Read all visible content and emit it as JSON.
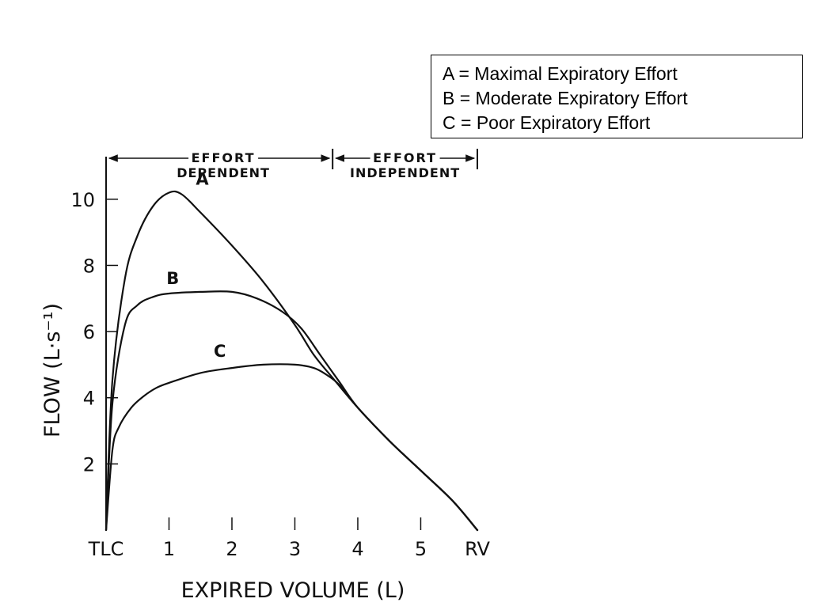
{
  "chart_data": {
    "type": "line",
    "xlabel": "EXPIRED VOLUME (L)",
    "ylabel": "FLOW (L·s⁻¹)",
    "xlim": [
      0,
      5.9
    ],
    "ylim": [
      0,
      11
    ],
    "x_ticks": [
      {
        "value": 0,
        "label": "TLC"
      },
      {
        "value": 1,
        "label": "1"
      },
      {
        "value": 2,
        "label": "2"
      },
      {
        "value": 3,
        "label": "3"
      },
      {
        "value": 4,
        "label": "4"
      },
      {
        "value": 5,
        "label": "5"
      },
      {
        "value": 5.9,
        "label": "RV"
      }
    ],
    "y_ticks": [
      {
        "value": 2,
        "label": "2"
      },
      {
        "value": 4,
        "label": "4"
      },
      {
        "value": 6,
        "label": "6"
      },
      {
        "value": 8,
        "label": "8"
      },
      {
        "value": 10,
        "label": "10"
      }
    ],
    "regions": [
      {
        "label_line1": "EFFORT",
        "label_line2": "DEPENDENT",
        "x_start": 0,
        "x_end": 3.6
      },
      {
        "label_line1": "EFFORT",
        "label_line2": "INDEPENDENT",
        "x_start": 3.6,
        "x_end": 5.9
      }
    ],
    "series": [
      {
        "name": "A",
        "x": [
          0,
          0.1,
          0.3,
          0.5,
          0.75,
          1.0,
          1.2,
          1.5,
          2.0,
          2.5,
          3.0,
          3.3,
          3.6,
          4.0,
          4.5,
          5.0,
          5.5,
          5.9
        ],
        "y": [
          0,
          4.5,
          7.6,
          8.9,
          9.8,
          10.2,
          10.15,
          9.6,
          8.6,
          7.5,
          6.2,
          5.3,
          4.6,
          3.7,
          2.7,
          1.8,
          0.9,
          0
        ]
      },
      {
        "name": "B",
        "x": [
          0,
          0.1,
          0.3,
          0.5,
          0.75,
          1.0,
          1.5,
          2.0,
          2.4,
          2.8,
          3.1,
          3.4,
          3.7,
          4.0,
          4.5,
          5.0,
          5.5,
          5.9
        ],
        "y": [
          0,
          3.8,
          6.2,
          6.8,
          7.05,
          7.15,
          7.2,
          7.2,
          7.0,
          6.6,
          6.1,
          5.3,
          4.5,
          3.7,
          2.7,
          1.8,
          0.9,
          0
        ]
      },
      {
        "name": "C",
        "x": [
          0,
          0.1,
          0.2,
          0.4,
          0.6,
          0.8,
          1.0,
          1.5,
          2.0,
          2.5,
          3.0,
          3.3,
          3.5,
          3.7,
          4.0,
          4.5,
          5.0,
          5.5,
          5.9
        ],
        "y": [
          0,
          2.4,
          3.1,
          3.7,
          4.05,
          4.3,
          4.45,
          4.75,
          4.9,
          5.0,
          5.0,
          4.9,
          4.7,
          4.4,
          3.7,
          2.7,
          1.8,
          0.9,
          0
        ]
      }
    ]
  },
  "legend": {
    "lines": [
      "A = Maximal Expiratory Effort",
      "B = Moderate Expiratory Effort",
      "C = Poor Expiratory Effort"
    ]
  }
}
